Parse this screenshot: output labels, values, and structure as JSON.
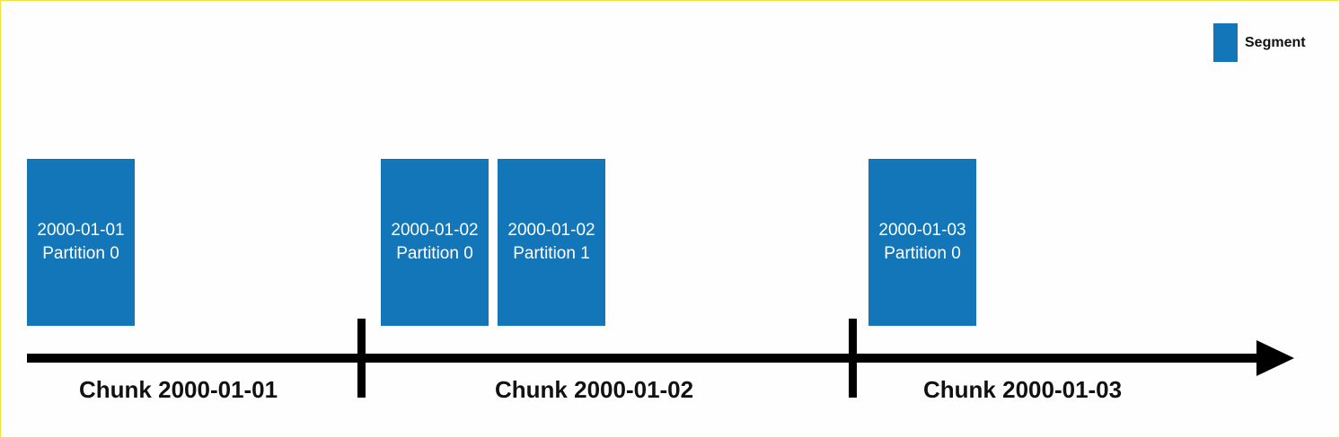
{
  "legend": {
    "label": "Segment",
    "color": "#1276b9"
  },
  "segments": [
    {
      "date": "2000-01-01",
      "partition": "Partition 0"
    },
    {
      "date": "2000-01-02",
      "partition": "Partition 0"
    },
    {
      "date": "2000-01-02",
      "partition": "Partition 1"
    },
    {
      "date": "2000-01-03",
      "partition": "Partition 0"
    }
  ],
  "chunks": [
    {
      "label": "Chunk 2000-01-01"
    },
    {
      "label": "Chunk 2000-01-02"
    },
    {
      "label": "Chunk 2000-01-03"
    }
  ],
  "colors": {
    "segment": "#1276b9",
    "axis": "#000000",
    "frame_border": "#f3e23a"
  },
  "icons": {
    "axis_end": "arrow-right-icon"
  }
}
